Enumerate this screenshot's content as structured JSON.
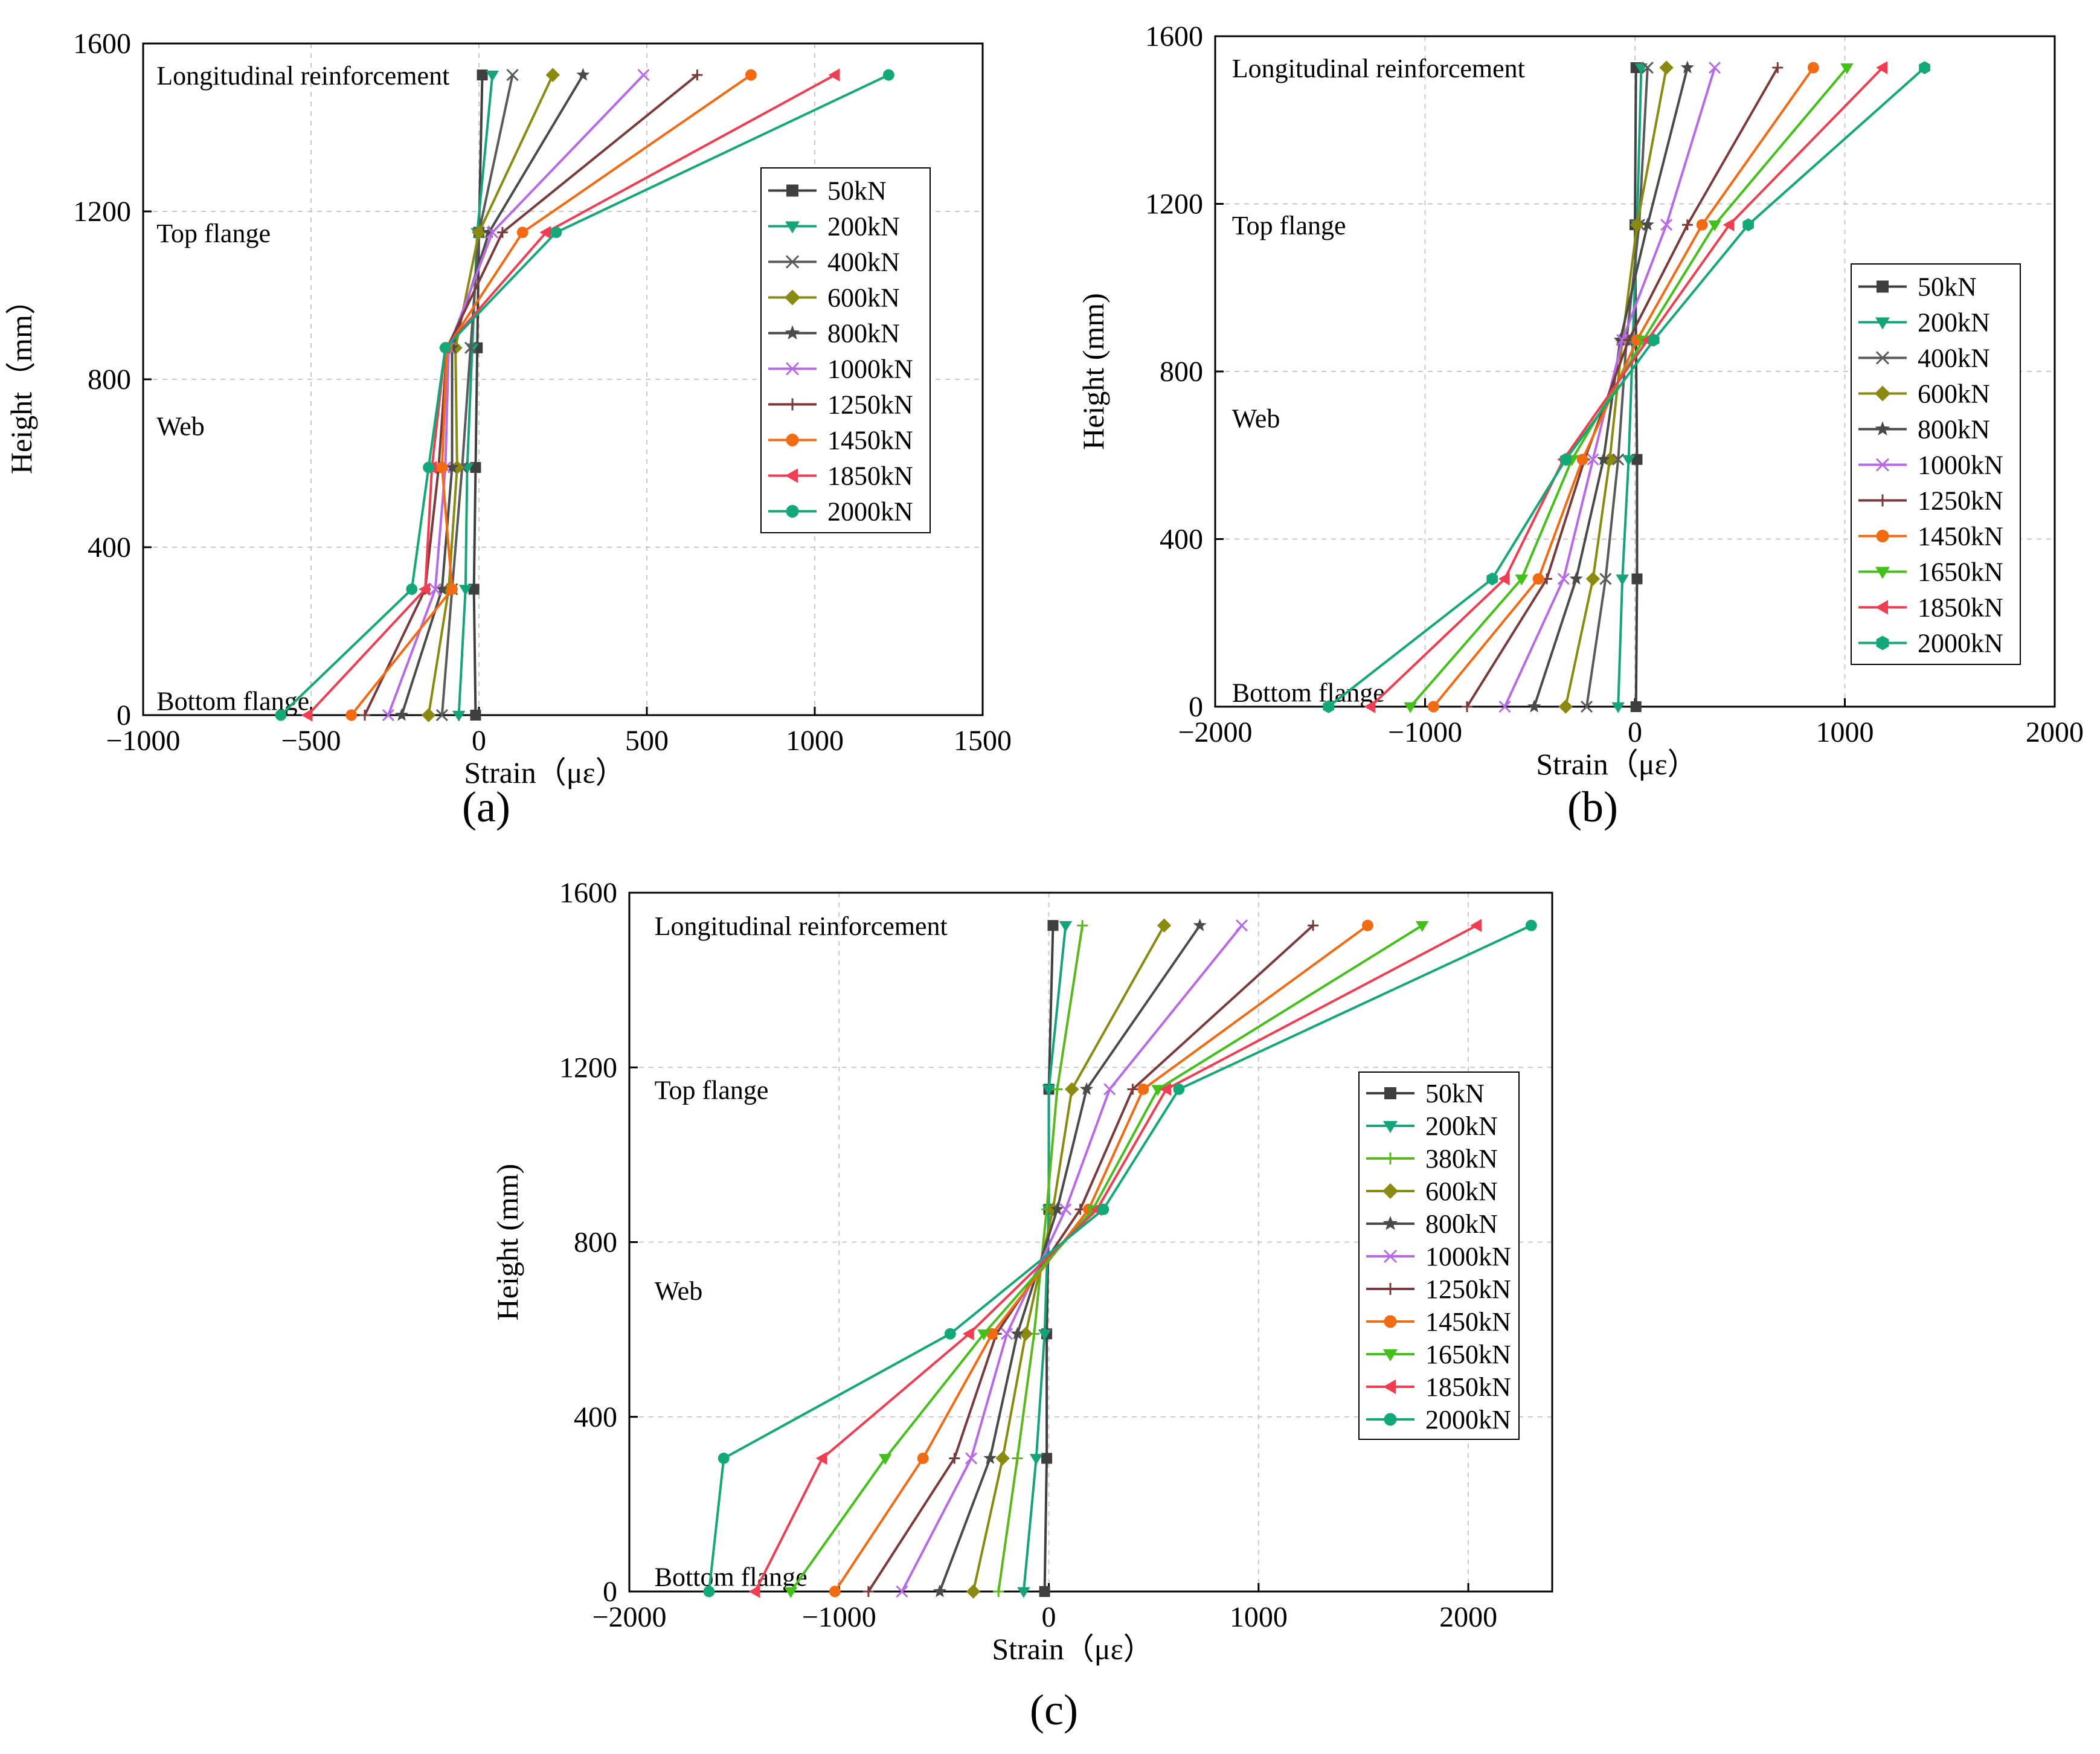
{
  "figure": {
    "labels": [
      "(a)",
      "(b)",
      "(c)"
    ],
    "colors": {
      "50kN": "#3f3f3f",
      "200kN": "#15a37a",
      "380kN": "#58b81c",
      "400kN": "#5a5a5a",
      "600kN": "#8a8a10",
      "800kN": "#4a4a4a",
      "1000kN": "#b86ae6",
      "1250kN": "#7b3a3a",
      "1450kN": "#f26a12",
      "1650kN": "#44c01a",
      "1850kN": "#ef3e52",
      "2000kN": "#12a878"
    }
  },
  "chart_data": [
    {
      "type": "line",
      "panel": "(a)",
      "xlabel": "Strain（με）",
      "ylabel": "Height（mm）",
      "xlim": [
        -1000,
        1500
      ],
      "ylim": [
        0,
        1600
      ],
      "xticks": [
        -1000,
        -500,
        0,
        500,
        1000,
        1500
      ],
      "yticks": [
        0,
        400,
        800,
        1200,
        1600
      ],
      "xticklabels": [
        "−1000",
        "−500",
        "0",
        "500",
        "1000",
        "1500"
      ],
      "yticklabels": [
        "0",
        "400",
        "800",
        "1200",
        "1600"
      ],
      "grid": true,
      "legend_position": "middle-right",
      "annotations": [
        {
          "text": "Longitudinal reinforcement",
          "x": -960,
          "y": 1525
        },
        {
          "text": "Top flange",
          "x": -960,
          "y": 1150
        },
        {
          "text": "Web",
          "x": -960,
          "y": 690
        },
        {
          "text": "Bottom flange",
          "x": -960,
          "y": 35
        }
      ],
      "y": [
        0,
        300,
        590,
        875,
        1150,
        1525
      ],
      "series": [
        {
          "name": "50kN",
          "marker": "square",
          "x": [
            -10,
            -15,
            -10,
            -5,
            0,
            10
          ]
        },
        {
          "name": "200kN",
          "marker": "tri-down",
          "x": [
            -60,
            -40,
            -35,
            -20,
            -5,
            40
          ]
        },
        {
          "name": "400kN",
          "marker": "x",
          "x": [
            -110,
            -80,
            -50,
            -25,
            0,
            100
          ]
        },
        {
          "name": "600kN",
          "marker": "diamond",
          "x": [
            -150,
            -90,
            -65,
            -70,
            0,
            220
          ]
        },
        {
          "name": "800kN",
          "marker": "star",
          "x": [
            -230,
            -110,
            -80,
            -80,
            30,
            310
          ]
        },
        {
          "name": "1000kN",
          "marker": "x",
          "x": [
            -270,
            -130,
            -100,
            -90,
            40,
            490
          ]
        },
        {
          "name": "1250kN",
          "marker": "plus",
          "x": [
            -340,
            -160,
            -120,
            -95,
            70,
            650
          ]
        },
        {
          "name": "1450kN",
          "marker": "circle",
          "x": [
            -380,
            -80,
            -110,
            -95,
            130,
            810
          ]
        },
        {
          "name": "1850kN",
          "marker": "tri-left",
          "x": [
            -510,
            -160,
            -140,
            -100,
            200,
            1060
          ]
        },
        {
          "name": "2000kN",
          "marker": "circle",
          "x": [
            -590,
            -200,
            -150,
            -100,
            230,
            1220
          ]
        }
      ]
    },
    {
      "type": "line",
      "panel": "(b)",
      "xlabel": "Strain（με）",
      "ylabel": "Height (mm)",
      "xlim": [
        -2000,
        2000
      ],
      "ylim": [
        0,
        1600
      ],
      "xticks": [
        -2000,
        -1000,
        0,
        1000,
        2000
      ],
      "yticks": [
        0,
        400,
        800,
        1200,
        1600
      ],
      "xticklabels": [
        "−2000",
        "−1000",
        "0",
        "1000",
        "2000"
      ],
      "yticklabels": [
        "0",
        "400",
        "800",
        "1200",
        "1600"
      ],
      "grid": true,
      "legend_position": "middle-right",
      "annotations": [
        {
          "text": "Longitudinal reinforcement",
          "x": -1920,
          "y": 1525
        },
        {
          "text": "Top flange",
          "x": -1920,
          "y": 1150
        },
        {
          "text": "Web",
          "x": -1920,
          "y": 690
        },
        {
          "text": "Bottom flange",
          "x": -1920,
          "y": 35
        }
      ],
      "y": [
        0,
        305,
        590,
        875,
        1150,
        1525
      ],
      "series": [
        {
          "name": "50kN",
          "marker": "square",
          "x": [
            5,
            10,
            10,
            5,
            0,
            5
          ]
        },
        {
          "name": "200kN",
          "marker": "tri-down",
          "x": [
            -80,
            -60,
            -30,
            -10,
            10,
            30
          ]
        },
        {
          "name": "400kN",
          "marker": "x",
          "x": [
            -230,
            -140,
            -80,
            -40,
            20,
            60
          ]
        },
        {
          "name": "600kN",
          "marker": "diamond",
          "x": [
            -330,
            -200,
            -120,
            -60,
            10,
            150
          ]
        },
        {
          "name": "800kN",
          "marker": "star",
          "x": [
            -480,
            -280,
            -150,
            -70,
            60,
            250
          ]
        },
        {
          "name": "1000kN",
          "marker": "x",
          "x": [
            -620,
            -340,
            -200,
            -60,
            150,
            380
          ]
        },
        {
          "name": "1250kN",
          "marker": "plus",
          "x": [
            -800,
            -420,
            -240,
            -30,
            250,
            680
          ]
        },
        {
          "name": "1450kN",
          "marker": "circle",
          "x": [
            -960,
            -460,
            -250,
            10,
            320,
            850
          ]
        },
        {
          "name": "1650kN",
          "marker": "tri-down",
          "x": [
            -1070,
            -540,
            -300,
            40,
            380,
            1010
          ]
        },
        {
          "name": "1850kN",
          "marker": "tri-left",
          "x": [
            -1260,
            -620,
            -340,
            60,
            450,
            1180
          ]
        },
        {
          "name": "2000kN",
          "marker": "hexagon",
          "x": [
            -1460,
            -680,
            -330,
            90,
            540,
            1380
          ]
        }
      ]
    },
    {
      "type": "line",
      "panel": "(c)",
      "xlabel": "Strain（με）",
      "ylabel": "Height (mm)",
      "xlim": [
        -2000,
        2400
      ],
      "ylim": [
        0,
        1600
      ],
      "xticks": [
        -2000,
        -1000,
        0,
        1000,
        2000
      ],
      "yticks": [
        0,
        400,
        800,
        1200,
        1600
      ],
      "xticklabels": [
        "−2000",
        "−1000",
        "0",
        "1000",
        "2000"
      ],
      "yticklabels": [
        "0",
        "400",
        "800",
        "1200",
        "1600"
      ],
      "grid": true,
      "legend_position": "middle-right",
      "annotations": [
        {
          "text": "Longitudinal reinforcement",
          "x": -1880,
          "y": 1525
        },
        {
          "text": "Top flange",
          "x": -1880,
          "y": 1150
        },
        {
          "text": "Web",
          "x": -1880,
          "y": 690
        },
        {
          "text": "Bottom flange",
          "x": -1880,
          "y": 35
        }
      ],
      "y": [
        0,
        305,
        590,
        875,
        1150,
        1525
      ],
      "series": [
        {
          "name": "50kN",
          "marker": "square",
          "x": [
            -20,
            -10,
            -10,
            0,
            0,
            20
          ]
        },
        {
          "name": "200kN",
          "marker": "tri-down",
          "x": [
            -120,
            -60,
            -20,
            0,
            0,
            80
          ]
        },
        {
          "name": "380kN",
          "marker": "plus",
          "x": [
            -240,
            -150,
            -70,
            -10,
            40,
            160
          ]
        },
        {
          "name": "600kN",
          "marker": "diamond",
          "x": [
            -360,
            -220,
            -110,
            20,
            110,
            550
          ]
        },
        {
          "name": "800kN",
          "marker": "star",
          "x": [
            -520,
            -280,
            -150,
            40,
            180,
            720
          ]
        },
        {
          "name": "1000kN",
          "marker": "x",
          "x": [
            -700,
            -370,
            -200,
            80,
            290,
            920
          ]
        },
        {
          "name": "1250kN",
          "marker": "plus",
          "x": [
            -860,
            -450,
            -250,
            150,
            400,
            1260
          ]
        },
        {
          "name": "1450kN",
          "marker": "circle",
          "x": [
            -1020,
            -600,
            -270,
            190,
            450,
            1520
          ]
        },
        {
          "name": "1650kN",
          "marker": "tri-down",
          "x": [
            -1230,
            -780,
            -310,
            210,
            520,
            1780
          ]
        },
        {
          "name": "1850kN",
          "marker": "tri-left",
          "x": [
            -1400,
            -1080,
            -380,
            230,
            560,
            2040
          ]
        },
        {
          "name": "2000kN",
          "marker": "circle",
          "x": [
            -1620,
            -1550,
            -470,
            260,
            620,
            2300
          ]
        }
      ]
    }
  ]
}
